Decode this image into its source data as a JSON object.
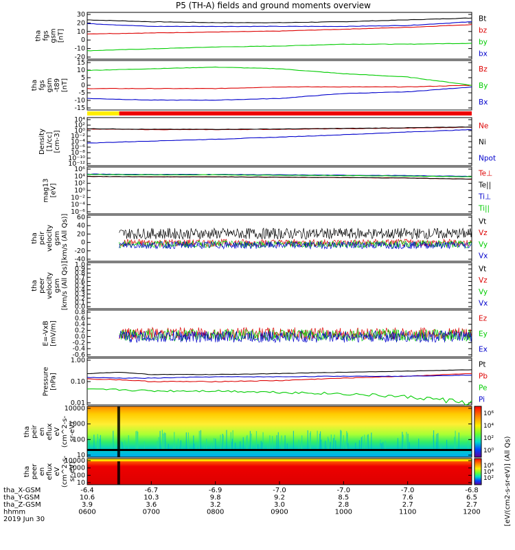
{
  "title": "P5 (TH-A) fields and ground moments overview",
  "date_label": "2019 Jun 30",
  "orbit_rows": [
    {
      "label": "tha_X-GSM",
      "values": [
        "-6.4",
        "-6.7",
        "-6.9",
        "-7.0",
        "-7.0",
        "-7.0",
        "-6.8"
      ]
    },
    {
      "label": "tha_Y-GSM",
      "values": [
        "10.6",
        "10.3",
        "9.8",
        "9.2",
        "8.5",
        "7.6",
        "6.5"
      ]
    },
    {
      "label": "tha_Z-GSM",
      "values": [
        "3.9",
        "3.6",
        "3.2",
        "3.0",
        "2.8",
        "2.7",
        "2.7"
      ]
    },
    {
      "label": "hhmm",
      "values": [
        "0600",
        "0700",
        "0800",
        "0900",
        "1000",
        "1100",
        "1200"
      ]
    }
  ],
  "colorbar": {
    "label": "[eV/(cm2-s-sr-eV)] (All Qs)",
    "ticks": [
      "10⁶",
      "10⁴",
      "10²",
      "10⁰"
    ],
    "ticks2": [
      "10⁶",
      "10⁴",
      "10²"
    ]
  },
  "panels": [
    {
      "ylabel": [
        "tha",
        "fgs",
        "gsm",
        "[nT]"
      ],
      "yticks": [
        "30",
        "20",
        "10",
        "0",
        "-10",
        "-20"
      ],
      "legend": [
        {
          "t": "Bt",
          "c": "#000000"
        },
        {
          "t": "bz",
          "c": "#dd0000"
        },
        {
          "t": "by",
          "c": "#00cc00"
        },
        {
          "t": "bx",
          "c": "#0000cc"
        }
      ]
    },
    {
      "ylabel": [
        "tha",
        "fgs",
        "gsm",
        "-t89",
        "[nT]"
      ],
      "yticks": [
        "15",
        "10",
        "5",
        "0",
        "-5",
        "-10",
        "-15"
      ],
      "legend": [
        {
          "t": "Bz",
          "c": "#dd0000"
        },
        {
          "t": "By",
          "c": "#00cc00"
        },
        {
          "t": "Bx",
          "c": "#0000cc"
        }
      ]
    },
    {
      "ylabel": [
        "Density",
        "[1/cc]",
        "[cm-3]"
      ],
      "yticks": [
        "10⁴",
        "10²",
        "10⁰",
        "10⁻²",
        "10⁻⁴",
        "10⁻⁶",
        "10⁻⁸",
        "10⁻¹⁰",
        "10⁻¹²"
      ],
      "legend": [
        {
          "t": "Ne",
          "c": "#dd0000"
        },
        {
          "t": "Ni",
          "c": "#000000"
        },
        {
          "t": "Npot",
          "c": "#0000cc"
        }
      ]
    },
    {
      "ylabel": [
        "mag13",
        "[eV]"
      ],
      "yticks": [
        "10⁶",
        "10⁴",
        "10²",
        "10⁰",
        "10⁻²",
        "10⁻⁴",
        "10⁻⁶"
      ],
      "legend": [
        {
          "t": "Te⊥",
          "c": "#dd0000"
        },
        {
          "t": "Te||",
          "c": "#000000"
        },
        {
          "t": "Ti⊥",
          "c": "#0000cc"
        },
        {
          "t": "Ti||",
          "c": "#00cc00"
        }
      ]
    },
    {
      "ylabel": [
        "tha",
        "peir",
        "velocity",
        "gsm",
        "[km/s (All Qs)]"
      ],
      "yticks": [
        "60",
        "40",
        "20",
        "0",
        "-20",
        "-40"
      ],
      "legend": [
        {
          "t": "Vt",
          "c": "#000000"
        },
        {
          "t": "Vz",
          "c": "#dd0000"
        },
        {
          "t": "Vy",
          "c": "#00cc00"
        },
        {
          "t": "Vx",
          "c": "#0000cc"
        }
      ]
    },
    {
      "ylabel": [
        "tha",
        "peer",
        "velocity",
        "gsm",
        "[km/s (All Qs)]"
      ],
      "yticks": [
        "1.0",
        "0.9",
        "0.8",
        "0.7",
        "0.6",
        "0.5",
        "0.4",
        "0.3",
        "0.2",
        "0.1",
        "0.0"
      ],
      "legend": [
        {
          "t": "Vt",
          "c": "#000000"
        },
        {
          "t": "Vz",
          "c": "#dd0000"
        },
        {
          "t": "Vy",
          "c": "#00cc00"
        },
        {
          "t": "Vx",
          "c": "#0000cc"
        }
      ]
    },
    {
      "ylabel": [
        "E=-VxB",
        "[mV/m]"
      ],
      "yticks": [
        "0.8",
        "0.6",
        "0.4",
        "0.2",
        "0.0",
        "-0.2",
        "-0.4",
        "-0.6"
      ],
      "legend": [
        {
          "t": "Ez",
          "c": "#dd0000"
        },
        {
          "t": "Ey",
          "c": "#00cc00"
        },
        {
          "t": "Ex",
          "c": "#0000cc"
        }
      ]
    },
    {
      "ylabel": [
        "Pressure",
        "[nPa]"
      ],
      "yticks": [
        "1.00",
        "0.10",
        "0.01"
      ],
      "legend": [
        {
          "t": "Pt",
          "c": "#000000"
        },
        {
          "t": "Pb",
          "c": "#dd0000"
        },
        {
          "t": "Pe",
          "c": "#00cc00"
        },
        {
          "t": "Pi",
          "c": "#0000cc"
        }
      ]
    },
    {
      "ylabel": [
        "tha",
        "peir",
        "en",
        "eflux",
        "eV",
        "(cm^2-s-",
        "sr-eV)"
      ],
      "yticks": [
        "10000",
        "1000",
        "100",
        "10"
      ],
      "legend": []
    },
    {
      "ylabel": [
        "tha",
        "peer",
        "en",
        "eflux",
        "eV",
        "(cm^2-s-",
        "sr-eV)"
      ],
      "yticks": [
        "10000",
        "1000",
        "100",
        "10"
      ],
      "legend": []
    }
  ],
  "chart_data": {
    "type": "line",
    "title": "P5 (TH-A) fields and ground moments overview",
    "x_labels": [
      "0600",
      "0700",
      "0800",
      "0900",
      "1000",
      "1100",
      "1200"
    ],
    "xlim": [
      "2019-06-30 06:00",
      "2019-06-30 12:00"
    ],
    "panels": [
      {
        "name": "tha fgs gsm [nT]",
        "ylim": [
          -20,
          30
        ],
        "series": [
          {
            "name": "Bt",
            "color": "#000000",
            "x": [
              0,
              1,
              2,
              3,
              4,
              5,
              6
            ],
            "values": [
              22,
              20,
              19,
              19,
              20,
              22,
              24
            ]
          },
          {
            "name": "bz",
            "color": "#dd0000",
            "x": [
              0,
              1,
              2,
              3,
              4,
              5,
              6
            ],
            "values": [
              7,
              8,
              9,
              10,
              12,
              14,
              17
            ]
          },
          {
            "name": "by",
            "color": "#00cc00",
            "x": [
              0,
              1,
              2,
              3,
              4,
              5,
              6
            ],
            "values": [
              -11,
              -9,
              -7,
              -6,
              -4,
              -4,
              -3
            ]
          },
          {
            "name": "bx",
            "color": "#0000cc",
            "x": [
              0,
              1,
              2,
              3,
              4,
              5,
              6
            ],
            "values": [
              18,
              15,
              15,
              15,
              15,
              16,
              20
            ]
          }
        ]
      },
      {
        "name": "tha fgs gsm -t89 [nT]",
        "ylim": [
          -15,
          15
        ],
        "series": [
          {
            "name": "Bz",
            "color": "#dd0000",
            "x": [
              0,
              1,
              2,
              3,
              4,
              5,
              6
            ],
            "values": [
              -2,
              -2,
              -2,
              -1,
              -1,
              -1,
              0
            ]
          },
          {
            "name": "By",
            "color": "#00cc00",
            "x": [
              0,
              1,
              2,
              3,
              4,
              5,
              6
            ],
            "values": [
              9,
              10,
              11,
              10,
              7,
              5,
              0
            ]
          },
          {
            "name": "Bx",
            "color": "#0000cc",
            "x": [
              0,
              1,
              2,
              3,
              4,
              5,
              6
            ],
            "values": [
              -8,
              -9,
              -9,
              -8,
              -5,
              -4,
              -1
            ]
          }
        ]
      },
      {
        "name": "Density [1/cc]",
        "ylim": [
          -12,
          4
        ],
        "scale": "log10",
        "series": [
          {
            "name": "Ne",
            "color": "#dd0000",
            "x": [
              0,
              1,
              2,
              3,
              4,
              5,
              6
            ],
            "values": [
              0.2,
              0,
              0,
              0.1,
              0.3,
              0.5,
              0.8
            ]
          },
          {
            "name": "Ni",
            "color": "#000000",
            "x": [
              0,
              1,
              2,
              3,
              4,
              5,
              6
            ],
            "values": [
              0.3,
              0.1,
              0.1,
              0.2,
              0.4,
              0.6,
              0.9
            ]
          },
          {
            "name": "Npot",
            "color": "#0000cc",
            "x": [
              0,
              1,
              2,
              3,
              4,
              5,
              6
            ],
            "values": [
              -4.5,
              -3.8,
              -3.2,
              -2.5,
              -1.7,
              -0.8,
              0
            ]
          }
        ]
      },
      {
        "name": "mag13 [eV]",
        "ylim": [
          -6,
          6
        ],
        "scale": "log10",
        "series": [
          {
            "name": "Te⊥",
            "color": "#dd0000",
            "x": [
              0,
              1,
              2,
              3,
              4,
              5,
              6
            ],
            "values": [
              3.6,
              3.5,
              3.5,
              3.4,
              3.3,
              3.2,
              2.9
            ]
          },
          {
            "name": "Te||",
            "color": "#000000",
            "x": [
              0,
              1,
              2,
              3,
              4,
              5,
              6
            ],
            "values": [
              3.6,
              3.5,
              3.5,
              3.4,
              3.3,
              3.2,
              2.9
            ]
          },
          {
            "name": "Ti⊥",
            "color": "#0000cc",
            "x": [
              0,
              1,
              2,
              3,
              4,
              5,
              6
            ],
            "values": [
              4.2,
              4.1,
              4.1,
              4.0,
              3.9,
              3.8,
              3.6
            ]
          },
          {
            "name": "Ti||",
            "color": "#00cc00",
            "x": [
              0,
              1,
              2,
              3,
              4,
              5,
              6
            ],
            "values": [
              4.1,
              4.0,
              4.0,
              3.9,
              3.8,
              3.7,
              3.5
            ]
          }
        ]
      },
      {
        "name": "tha peir velocity gsm [km/s]",
        "ylim": [
          -40,
          60
        ],
        "series": [
          {
            "name": "Vt",
            "color": "#000000",
            "x": [
              0.5,
              1,
              2,
              3,
              4,
              5,
              6
            ],
            "values": [
              20,
              20,
              18,
              18,
              18,
              18,
              18
            ]
          },
          {
            "name": "Vz",
            "color": "#dd0000",
            "x": [
              0.5,
              1,
              2,
              3,
              4,
              5,
              6
            ],
            "values": [
              0,
              0,
              0,
              0,
              0,
              0,
              0
            ]
          },
          {
            "name": "Vy",
            "color": "#00cc00",
            "x": [
              0.5,
              1,
              2,
              3,
              4,
              5,
              6
            ],
            "values": [
              -3,
              -3,
              -3,
              -3,
              -3,
              -3,
              -3
            ]
          },
          {
            "name": "Vx",
            "color": "#0000cc",
            "x": [
              0.5,
              1,
              2,
              3,
              4,
              5,
              6
            ],
            "values": [
              -5,
              -5,
              -5,
              -5,
              -5,
              -5,
              -5
            ]
          }
        ]
      },
      {
        "name": "tha peer velocity gsm [km/s]",
        "ylim": [
          0,
          1
        ],
        "series": []
      },
      {
        "name": "E=-VxB [mV/m]",
        "ylim": [
          -0.6,
          0.8
        ],
        "series": [
          {
            "name": "Ez",
            "color": "#dd0000",
            "x": [
              0.5,
              1,
              2,
              3,
              4,
              5,
              6
            ],
            "values": [
              0.1,
              0.1,
              0.1,
              0.1,
              0.1,
              0.1,
              0.1
            ]
          },
          {
            "name": "Ey",
            "color": "#00cc00",
            "x": [
              0.5,
              1,
              2,
              3,
              4,
              5,
              6
            ],
            "values": [
              0.05,
              0.05,
              0.05,
              0.05,
              0.05,
              0.05,
              0.1
            ]
          },
          {
            "name": "Ex",
            "color": "#0000cc",
            "x": [
              0.5,
              1,
              2,
              3,
              4,
              5,
              6
            ],
            "values": [
              0,
              0,
              0,
              0,
              0,
              0,
              -0.05
            ]
          }
        ]
      },
      {
        "name": "Pressure [nPa]",
        "ylim": [
          0.01,
          1.0
        ],
        "scale": "log10",
        "series": [
          {
            "name": "Pt",
            "color": "#000000",
            "x": [
              0,
              0.5,
              1,
              2,
              3,
              4,
              5,
              6
            ],
            "values": [
              0.22,
              0.25,
              0.2,
              0.2,
              0.22,
              0.25,
              0.28,
              0.32
            ]
          },
          {
            "name": "Pb",
            "color": "#dd0000",
            "x": [
              0,
              0.5,
              1,
              2,
              3,
              4,
              5,
              6
            ],
            "values": [
              0.13,
              0.12,
              0.1,
              0.1,
              0.11,
              0.14,
              0.17,
              0.22
            ]
          },
          {
            "name": "Pe",
            "color": "#00cc00",
            "x": [
              0,
              0.5,
              1,
              2,
              3,
              4,
              5,
              6
            ],
            "values": [
              0.045,
              0.045,
              0.04,
              0.04,
              0.035,
              0.03,
              0.022,
              0.012
            ]
          },
          {
            "name": "Pi",
            "color": "#0000cc",
            "x": [
              0,
              0.5,
              1,
              2,
              3,
              4,
              5,
              6
            ],
            "values": [
              0.15,
              0.14,
              0.14,
              0.16,
              0.16,
              0.17,
              0.17,
              0.19
            ]
          }
        ]
      },
      {
        "name": "tha peir en eflux",
        "type": "heatmap",
        "ylim": [
          5,
          15000
        ],
        "scale": "log10",
        "colorbar_range": [
          "10^0",
          "10^6"
        ]
      },
      {
        "name": "tha peer en eflux",
        "type": "heatmap",
        "ylim": [
          5,
          15000
        ],
        "scale": "log10",
        "colorbar_range": [
          "10^2",
          "10^6"
        ]
      }
    ]
  }
}
